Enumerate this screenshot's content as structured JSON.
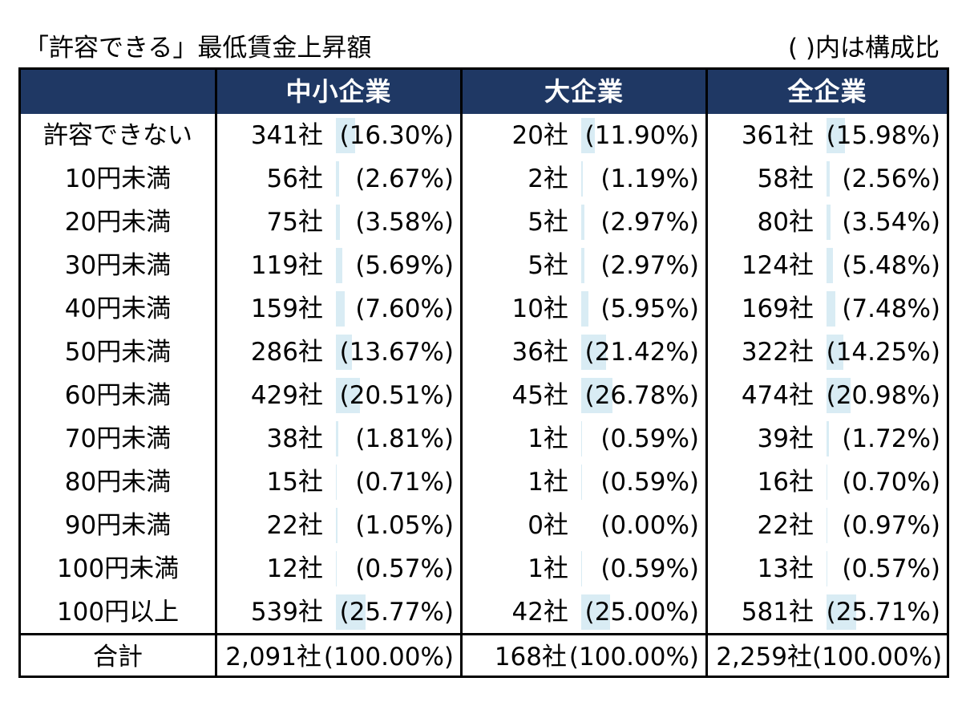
{
  "title": "「許容できる」最低賃金上昇額",
  "note": "(  )内は構成比",
  "colors": {
    "header_bg": "#1f3864",
    "header_text": "#ffffff",
    "bar": "#d9ecf4"
  },
  "chart_data": {
    "type": "table",
    "columns": [
      "中小企業",
      "大企業",
      "全企業"
    ],
    "rows": [
      {
        "label": "許容できない",
        "cells": [
          [
            "341社",
            "(16.30%)",
            16.3
          ],
          [
            "20社",
            "(11.90%)",
            11.9
          ],
          [
            "361社",
            "(15.98%)",
            15.98
          ]
        ]
      },
      {
        "label": "10円未満",
        "cells": [
          [
            "56社",
            "(2.67%)",
            2.67
          ],
          [
            "2社",
            "(1.19%)",
            1.19
          ],
          [
            "58社",
            "(2.56%)",
            2.56
          ]
        ]
      },
      {
        "label": "20円未満",
        "cells": [
          [
            "75社",
            "(3.58%)",
            3.58
          ],
          [
            "5社",
            "(2.97%)",
            2.97
          ],
          [
            "80社",
            "(3.54%)",
            3.54
          ]
        ]
      },
      {
        "label": "30円未満",
        "cells": [
          [
            "119社",
            "(5.69%)",
            5.69
          ],
          [
            "5社",
            "(2.97%)",
            2.97
          ],
          [
            "124社",
            "(5.48%)",
            5.48
          ]
        ]
      },
      {
        "label": "40円未満",
        "cells": [
          [
            "159社",
            "(7.60%)",
            7.6
          ],
          [
            "10社",
            "(5.95%)",
            5.95
          ],
          [
            "169社",
            "(7.48%)",
            7.48
          ]
        ]
      },
      {
        "label": "50円未満",
        "cells": [
          [
            "286社",
            "(13.67%)",
            13.67
          ],
          [
            "36社",
            "(21.42%)",
            21.42
          ],
          [
            "322社",
            "(14.25%)",
            14.25
          ]
        ]
      },
      {
        "label": "60円未満",
        "cells": [
          [
            "429社",
            "(20.51%)",
            20.51
          ],
          [
            "45社",
            "(26.78%)",
            26.78
          ],
          [
            "474社",
            "(20.98%)",
            20.98
          ]
        ]
      },
      {
        "label": "70円未満",
        "cells": [
          [
            "38社",
            "(1.81%)",
            1.81
          ],
          [
            "1社",
            "(0.59%)",
            0.59
          ],
          [
            "39社",
            "(1.72%)",
            1.72
          ]
        ]
      },
      {
        "label": "80円未満",
        "cells": [
          [
            "15社",
            "(0.71%)",
            0.71
          ],
          [
            "1社",
            "(0.59%)",
            0.59
          ],
          [
            "16社",
            "(0.70%)",
            0.7
          ]
        ]
      },
      {
        "label": "90円未満",
        "cells": [
          [
            "22社",
            "(1.05%)",
            1.05
          ],
          [
            "0社",
            "(0.00%)",
            0.0
          ],
          [
            "22社",
            "(0.97%)",
            0.97
          ]
        ]
      },
      {
        "label": "100円未満",
        "cells": [
          [
            "12社",
            "(0.57%)",
            0.57
          ],
          [
            "1社",
            "(0.59%)",
            0.59
          ],
          [
            "13社",
            "(0.57%)",
            0.57
          ]
        ]
      },
      {
        "label": "100円以上",
        "cells": [
          [
            "539社",
            "(25.77%)",
            25.77
          ],
          [
            "42社",
            "(25.00%)",
            25.0
          ],
          [
            "581社",
            "(25.71%)",
            25.71
          ]
        ]
      }
    ],
    "total": {
      "label": "合計",
      "cells": [
        [
          "2,091社",
          "(100.00%)"
        ],
        [
          "168社",
          "(100.00%)"
        ],
        [
          "2,259社",
          "(100.00%)"
        ]
      ]
    }
  }
}
